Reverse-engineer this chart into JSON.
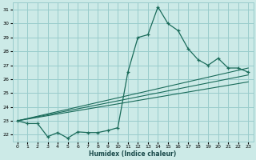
{
  "title": "",
  "xlabel": "Humidex (Indice chaleur)",
  "bg_color": "#cceae7",
  "grid_color": "#99cccc",
  "line_color": "#1a6b5a",
  "xlim": [
    -0.5,
    23.5
  ],
  "ylim": [
    21.5,
    31.5
  ],
  "xticks": [
    0,
    1,
    2,
    3,
    4,
    5,
    6,
    7,
    8,
    9,
    10,
    11,
    12,
    13,
    14,
    15,
    16,
    17,
    18,
    19,
    20,
    21,
    22,
    23
  ],
  "yticks": [
    22,
    23,
    24,
    25,
    26,
    27,
    28,
    29,
    30,
    31
  ],
  "main_x": [
    0,
    1,
    2,
    3,
    4,
    5,
    6,
    7,
    8,
    9,
    10,
    11,
    12,
    13,
    14,
    15,
    16,
    17,
    18,
    19,
    20,
    21,
    22,
    23
  ],
  "main_y": [
    23.0,
    22.8,
    22.8,
    21.85,
    22.15,
    21.75,
    22.2,
    22.15,
    22.15,
    22.3,
    22.5,
    26.5,
    29.0,
    29.2,
    31.2,
    30.0,
    29.5,
    28.2,
    27.4,
    27.0,
    27.5,
    26.8,
    26.8,
    26.5
  ],
  "line1_x": [
    0,
    23
  ],
  "line1_y": [
    23.0,
    26.8
  ],
  "line2_x": [
    0,
    23
  ],
  "line2_y": [
    23.0,
    26.3
  ],
  "line3_x": [
    0,
    23
  ],
  "line3_y": [
    23.0,
    25.8
  ]
}
